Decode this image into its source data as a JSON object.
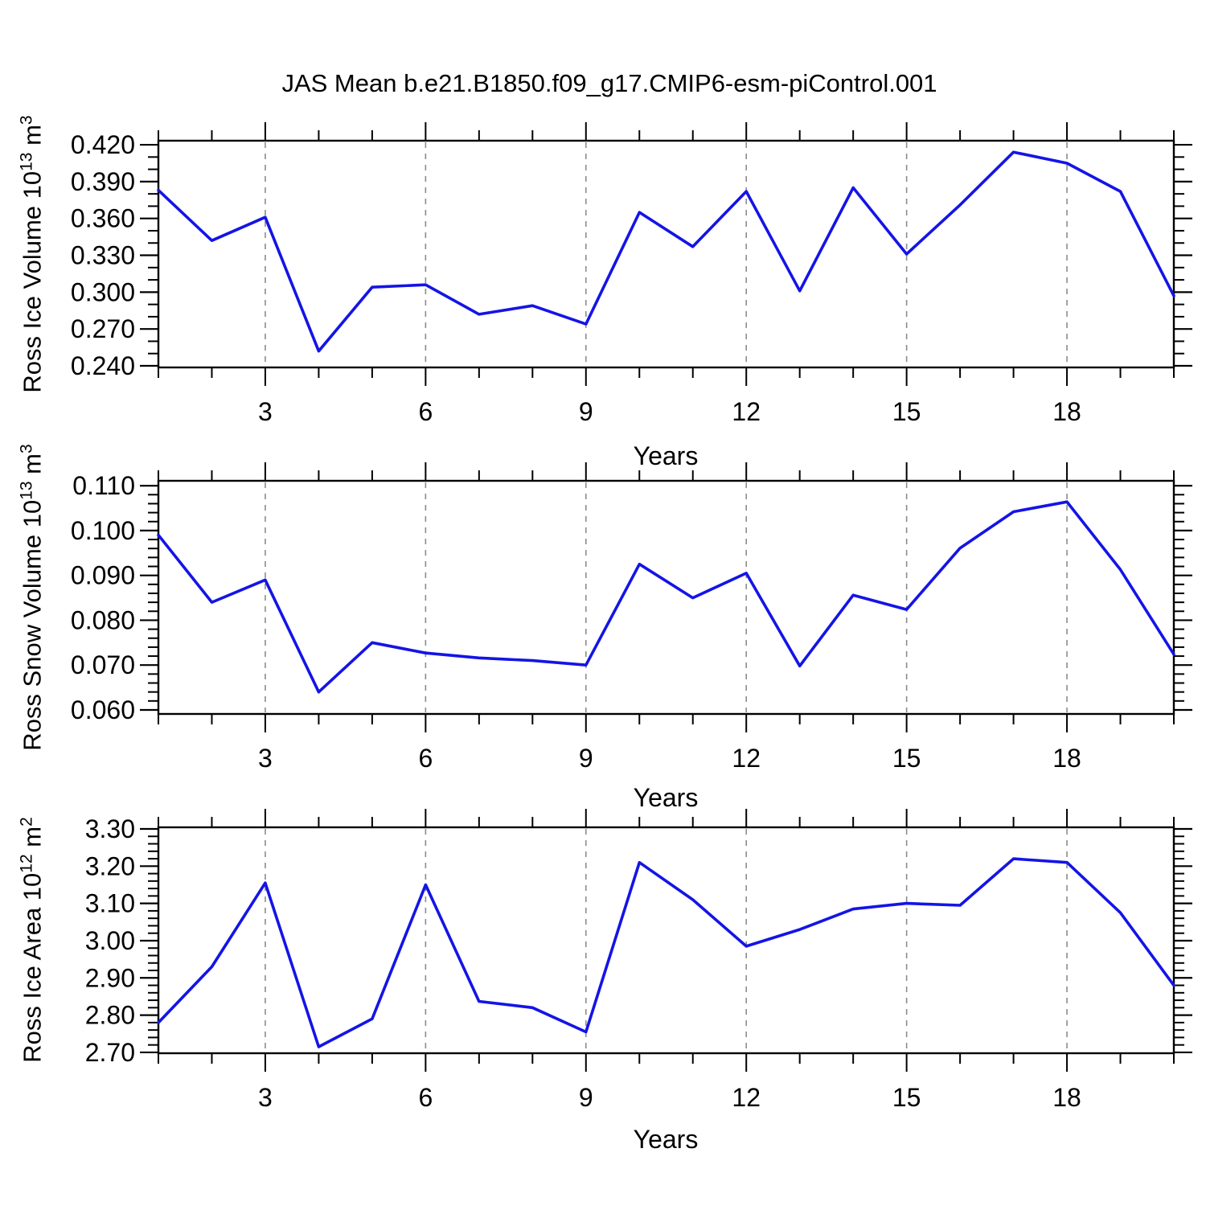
{
  "title": "JAS Mean b.e21.B1850.f09_g17.CMIP6-esm-piControl.001",
  "colors": {
    "line": "#1414e6",
    "grid": "#8c8c8c",
    "axis": "#000000",
    "background": "#ffffff"
  },
  "chart_data": [
    {
      "type": "line",
      "name": "ross-ice-volume",
      "ylabel_parts": {
        "main": "Ross Ice Volume 10",
        "exp": "13",
        "unit": " m",
        "unit_exp": "3"
      },
      "xlabel": "Years",
      "x": [
        1,
        2,
        3,
        4,
        5,
        6,
        7,
        8,
        9,
        10,
        11,
        12,
        13,
        14,
        15,
        16,
        17,
        18,
        19,
        20
      ],
      "values": [
        0.383,
        0.342,
        0.361,
        0.252,
        0.304,
        0.306,
        0.282,
        0.289,
        0.274,
        0.365,
        0.337,
        0.382,
        0.301,
        0.385,
        0.331,
        0.371,
        0.414,
        0.405,
        0.382,
        0.297
      ],
      "xlim": [
        1,
        20
      ],
      "ylim": [
        0.2387,
        0.4233
      ],
      "x_major_ticks": [
        3,
        6,
        9,
        12,
        15,
        18
      ],
      "x_minor_step": 1,
      "yticks": [
        0.24,
        0.27,
        0.3,
        0.33,
        0.36,
        0.39,
        0.42
      ],
      "ytick_labels": [
        "0.240",
        "0.270",
        "0.300",
        "0.330",
        "0.360",
        "0.390",
        "0.420"
      ],
      "y_minor_step": 0.01,
      "grid": "vertical-dashed",
      "legend": "none"
    },
    {
      "type": "line",
      "name": "ross-snow-volume",
      "ylabel_parts": {
        "main": "Ross Snow Volume 10",
        "exp": "13",
        "unit": " m",
        "unit_exp": "3"
      },
      "xlabel": "Years",
      "x": [
        1,
        2,
        3,
        4,
        5,
        6,
        7,
        8,
        9,
        10,
        11,
        12,
        13,
        14,
        15,
        16,
        17,
        18,
        19,
        20
      ],
      "values": [
        0.099,
        0.084,
        0.089,
        0.064,
        0.075,
        0.0727,
        0.0716,
        0.071,
        0.07,
        0.0925,
        0.085,
        0.0905,
        0.0698,
        0.0856,
        0.0824,
        0.0961,
        0.1042,
        0.1064,
        0.0913,
        0.0724
      ],
      "xlim": [
        1,
        20
      ],
      "ylim": [
        0.0591,
        0.1111
      ],
      "x_major_ticks": [
        3,
        6,
        9,
        12,
        15,
        18
      ],
      "x_minor_step": 1,
      "yticks": [
        0.06,
        0.07,
        0.08,
        0.09,
        0.1,
        0.11
      ],
      "ytick_labels": [
        "0.060",
        "0.070",
        "0.080",
        "0.090",
        "0.100",
        "0.110"
      ],
      "y_minor_step": 0.002,
      "grid": "vertical-dashed",
      "legend": "none"
    },
    {
      "type": "line",
      "name": "ross-ice-area",
      "ylabel_parts": {
        "main": "Ross Ice Area 10",
        "exp": "12",
        "unit": " m",
        "unit_exp": "2"
      },
      "xlabel": "Years",
      "x": [
        1,
        2,
        3,
        4,
        5,
        6,
        7,
        8,
        9,
        10,
        11,
        12,
        13,
        14,
        15,
        16,
        17,
        18,
        19,
        20
      ],
      "values": [
        2.78,
        2.93,
        3.155,
        2.715,
        2.79,
        3.15,
        2.837,
        2.82,
        2.755,
        3.21,
        3.11,
        2.985,
        3.03,
        3.085,
        3.1,
        3.095,
        3.22,
        3.21,
        3.075,
        2.88
      ],
      "xlim": [
        1,
        20
      ],
      "ylim": [
        2.6977,
        3.3043
      ],
      "x_major_ticks": [
        3,
        6,
        9,
        12,
        15,
        18
      ],
      "x_minor_step": 1,
      "yticks": [
        2.7,
        2.8,
        2.9,
        3.0,
        3.1,
        3.2,
        3.3
      ],
      "ytick_labels": [
        "2.70",
        "2.80",
        "2.90",
        "3.00",
        "3.10",
        "3.20",
        "3.30"
      ],
      "y_minor_step": 0.02,
      "grid": "vertical-dashed",
      "legend": "none"
    }
  ]
}
